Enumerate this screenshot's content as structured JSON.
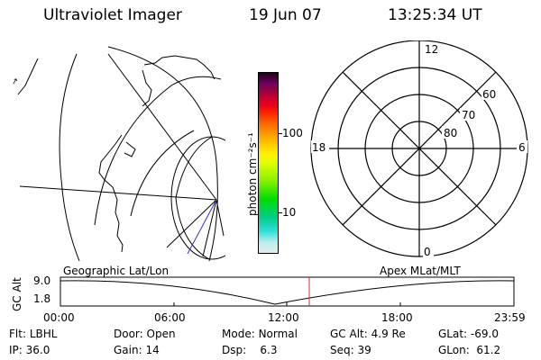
{
  "header": {
    "title": "Ultraviolet Imager",
    "date": "19 Jun 07",
    "time": "13:25:34 UT"
  },
  "colorbar": {
    "unit_label": "photon cm⁻²s⁻¹",
    "tick_100": "100",
    "tick_10": "10",
    "colors": [
      "#e8ecec",
      "#b8eeee",
      "#30e0d8",
      "#00cc88",
      "#00dd00",
      "#88f000",
      "#e0ff00",
      "#fff000",
      "#ffcc00",
      "#ff9900",
      "#ff6600",
      "#ff2200",
      "#e8001a",
      "#c80030",
      "#9a0040",
      "#700060",
      "#400050",
      "#200018"
    ]
  },
  "polar_plot": {
    "mlt_labels": {
      "top": "12",
      "bottom": "0",
      "left": "18",
      "right": "6"
    },
    "lat_labels": [
      "60",
      "70",
      "80"
    ]
  },
  "panel_labels": {
    "left": "Geographic Lat/Lon",
    "right": "Apex MLat/MLT"
  },
  "altitude_plot": {
    "ylabel": "GC Alt",
    "ymax_label": "9.0",
    "ymin_label": "1.8",
    "time_ticks": [
      "00:00",
      "06:00",
      "12:00",
      "18:00",
      "23:59"
    ]
  },
  "footer": {
    "filter_label": "Flt:",
    "filter_value": "LBHL",
    "ip_label": "IP:",
    "ip_value": "36.0",
    "door_label": "Door:",
    "door_value": "Open",
    "gain_label": "Gain:",
    "gain_value": "14",
    "mode_label": "Mode:",
    "mode_value": "Normal",
    "dsp_label": "Dsp:",
    "dsp_value": "6.3",
    "gcalt_label": "GC Alt:",
    "gcalt_value": "4.9 Re",
    "seq_label": "Seq:",
    "seq_value": "39",
    "glat_label": "GLat:",
    "glat_value": "-69.0",
    "glon_label": "GLon:",
    "glon_value": "61.2"
  },
  "colors": {
    "current_time_marker": "#cc3333",
    "track_line": "#3333bb"
  }
}
